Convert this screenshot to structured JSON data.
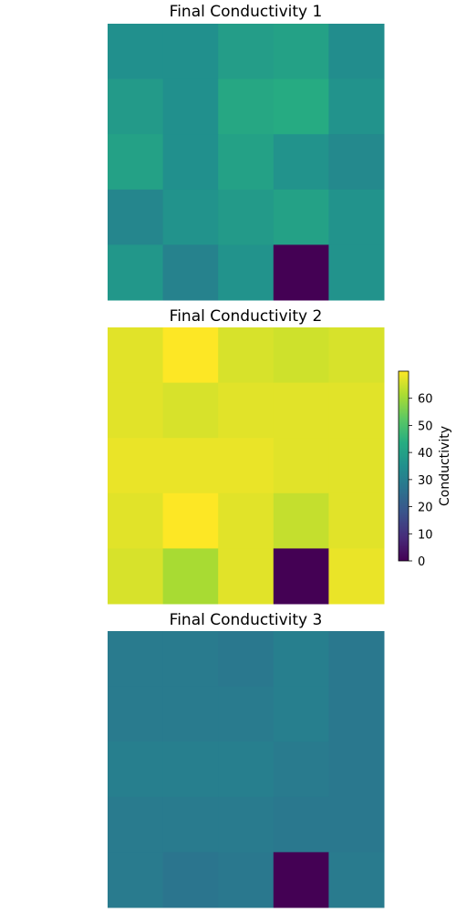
{
  "chart_data": [
    {
      "type": "heatmap",
      "title": "Final Conductivity 1",
      "rows": 5,
      "cols": 5,
      "values": [
        [
          35,
          35,
          39,
          40,
          34
        ],
        [
          38,
          35,
          42,
          43,
          36
        ],
        [
          40,
          35,
          40,
          36,
          33
        ],
        [
          32,
          36,
          38,
          40,
          36
        ],
        [
          37,
          31,
          36,
          0,
          36
        ]
      ]
    },
    {
      "type": "heatmap",
      "title": "Final Conductivity 2",
      "rows": 5,
      "cols": 5,
      "values": [
        [
          67,
          70,
          66,
          65,
          66
        ],
        [
          67,
          66,
          67,
          67,
          67
        ],
        [
          68,
          68,
          68,
          67,
          67
        ],
        [
          67,
          70,
          67,
          64,
          67
        ],
        [
          66,
          61,
          67,
          0,
          68
        ]
      ]
    },
    {
      "type": "heatmap",
      "title": "Final Conductivity 3",
      "rows": 5,
      "cols": 5,
      "values": [
        [
          29,
          29,
          28,
          30,
          28
        ],
        [
          29,
          29,
          29,
          30,
          28
        ],
        [
          30,
          30,
          30,
          29,
          28
        ],
        [
          29,
          29,
          29,
          28,
          28
        ],
        [
          29,
          27,
          28,
          0,
          29
        ]
      ]
    }
  ],
  "colorbar": {
    "label": "Conductivity",
    "vmin": 0,
    "vmax": 70,
    "ticks": [
      "0",
      "10",
      "20",
      "30",
      "40",
      "50",
      "60"
    ],
    "colormap": "viridis"
  }
}
